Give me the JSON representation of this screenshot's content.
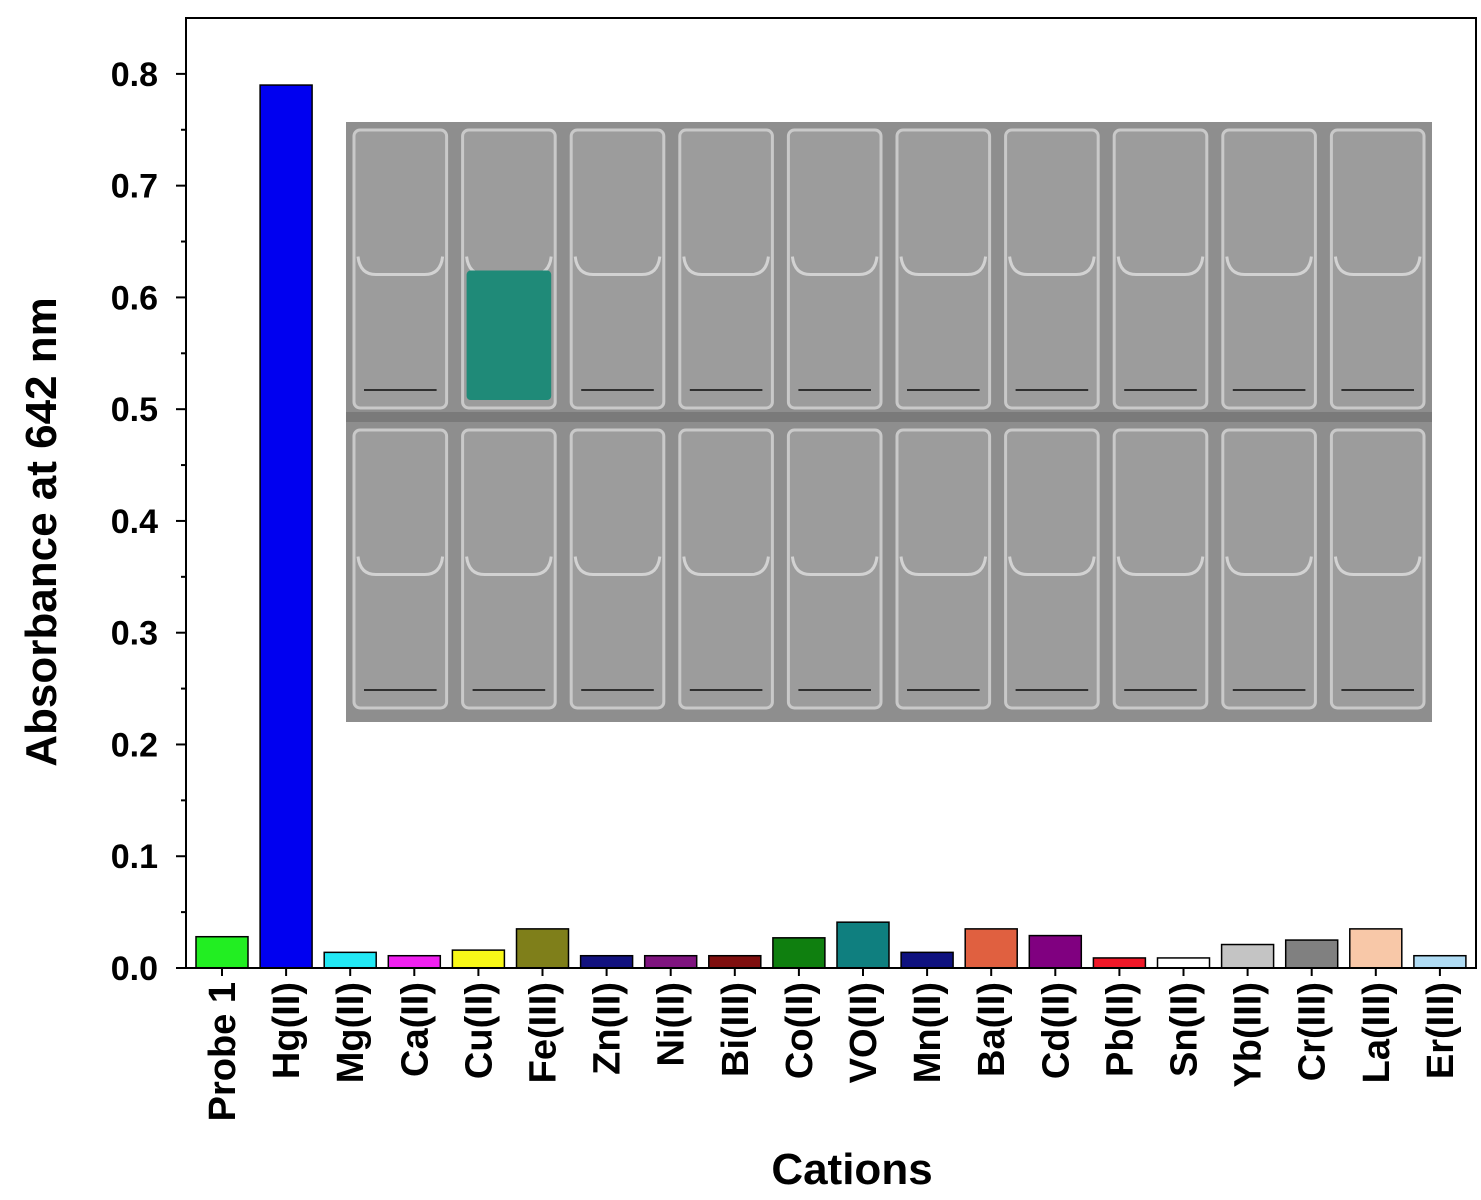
{
  "chart_data": {
    "type": "bar",
    "xlabel": "Cations",
    "ylabel": "Absorbance at 642 nm",
    "ylim": [
      0,
      0.85
    ],
    "yticks": [
      "0.0",
      "0.1",
      "0.2",
      "0.3",
      "0.4",
      "0.5",
      "0.6",
      "0.7",
      "0.8"
    ],
    "grid": false,
    "categories": [
      "Probe 1",
      "Hg(II)",
      "Mg(II)",
      "Ca(II)",
      "Cu(II)",
      "Fe(III)",
      "Zn(II)",
      "Ni(II)",
      "Bi(III)",
      "Co(II)",
      "VO(II)",
      "Mn(II)",
      "Ba(II)",
      "Cd(II)",
      "Pb(II)",
      "Sn(II)",
      "Yb(III)",
      "Cr(III)",
      "La(III)",
      "Er(III)"
    ],
    "values": [
      0.028,
      0.79,
      0.014,
      0.011,
      0.016,
      0.035,
      0.011,
      0.011,
      0.011,
      0.027,
      0.041,
      0.014,
      0.035,
      0.029,
      0.009,
      0.009,
      0.021,
      0.025,
      0.035,
      0.011
    ],
    "colors": [
      "#22ee22",
      "#0000f0",
      "#22e8f4",
      "#f020f0",
      "#f8f818",
      "#7f7f1a",
      "#12127f",
      "#7f147f",
      "#7f0f0f",
      "#0f7f0f",
      "#0f7f7f",
      "#0f127f",
      "#e06040",
      "#800080",
      "#f01828",
      "#ffffff",
      "#c4c4c4",
      "#808080",
      "#f8c8a8",
      "#b0dcf4"
    ]
  },
  "inset_photo": {
    "description_icon": "cuvette-photo",
    "background": "#8e8e8e",
    "highlight_color": "#1f8a78",
    "highlight_column": 1,
    "columns": 10,
    "rows": 2
  }
}
